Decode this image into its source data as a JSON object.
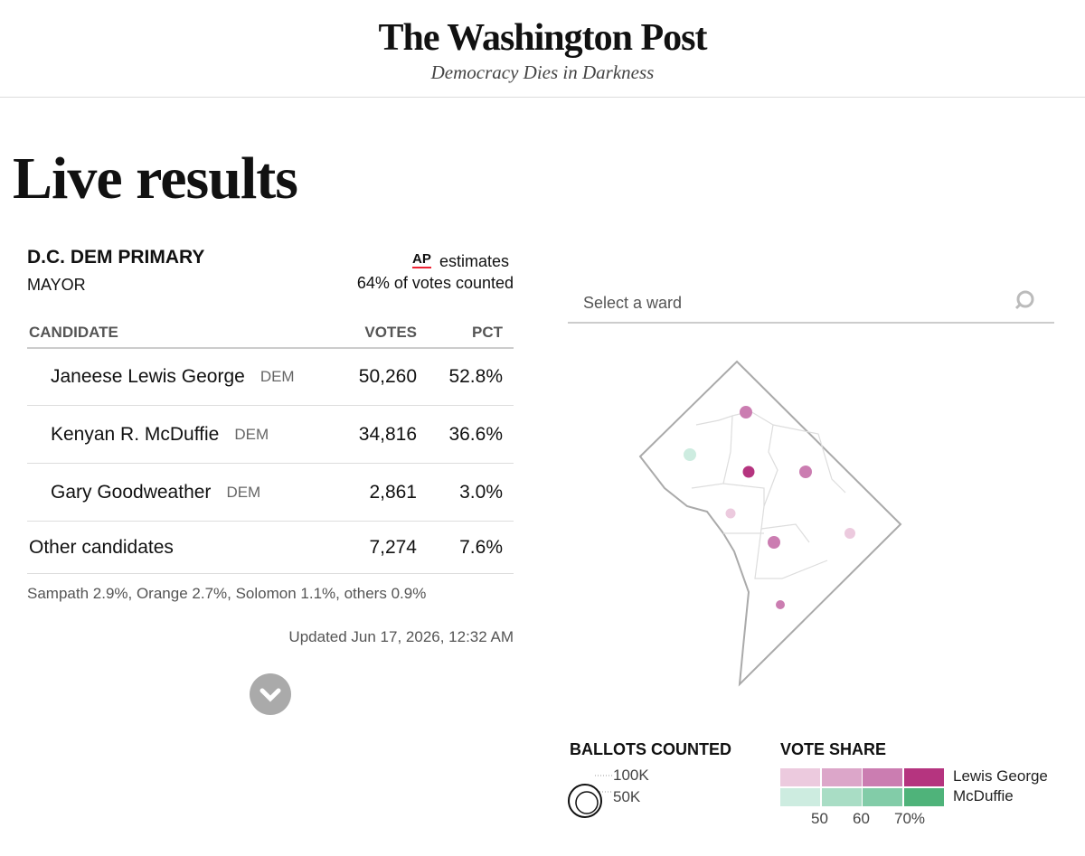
{
  "header": {
    "logo": "The Washington Post",
    "tagline": "Democracy Dies in Darkness"
  },
  "page_title": "Live results",
  "race": {
    "name": "D.C. DEM PRIMARY",
    "office": "MAYOR",
    "source": "AP",
    "source_note": "estimates",
    "counted": "64% of votes counted"
  },
  "table": {
    "columns": [
      "CANDIDATE",
      "VOTES",
      "PCT"
    ],
    "rows": [
      {
        "name": "Janeese Lewis George",
        "party": "DEM",
        "votes": "50,260",
        "pct": {
          "value": 52.8,
          "label": "52.8%"
        },
        "color": "#b5347f",
        "bar_color": "#f8e4ef"
      },
      {
        "name": "Kenyan R. McDuffie",
        "party": "DEM",
        "votes": "34,816",
        "pct": {
          "value": 36.6,
          "label": "36.6%"
        },
        "color": "#4fb37a",
        "bar_color": "#e7f5ec"
      },
      {
        "name": "Gary Goodweather",
        "party": "DEM",
        "votes": "2,861",
        "pct": {
          "value": 3.0,
          "label": "3.0%"
        },
        "color": "#aaaaaa",
        "bar_color": "#f2f2f2"
      },
      {
        "name": "Other candidates",
        "votes": "7,274",
        "pct": {
          "value": 7.6,
          "label": "7.6%"
        },
        "bar_color": "#eeeeee"
      }
    ]
  },
  "others_note": "Sampath 2.9%, Orange 2.7%, Solomon 1.1%, others 0.9%",
  "updated": "Updated Jun 17, 2026, 12:32 AM",
  "search": {
    "placeholder": "Select a ward"
  },
  "legend": {
    "ballots_title": "BALLOTS COUNTED",
    "ballot_sizes": [
      "100K",
      "50K"
    ],
    "share_title": "VOTE SHARE",
    "candidates": [
      {
        "name": "Lewis George",
        "colors": [
          "#eccade",
          "#dca6c9",
          "#cb7db1",
          "#b5347f"
        ]
      },
      {
        "name": "McDuffie",
        "colors": [
          "#cdece0",
          "#a9ddc5",
          "#82cca8",
          "#4fb37a"
        ]
      }
    ],
    "share_ticks": [
      "50",
      "60",
      "70%"
    ]
  }
}
